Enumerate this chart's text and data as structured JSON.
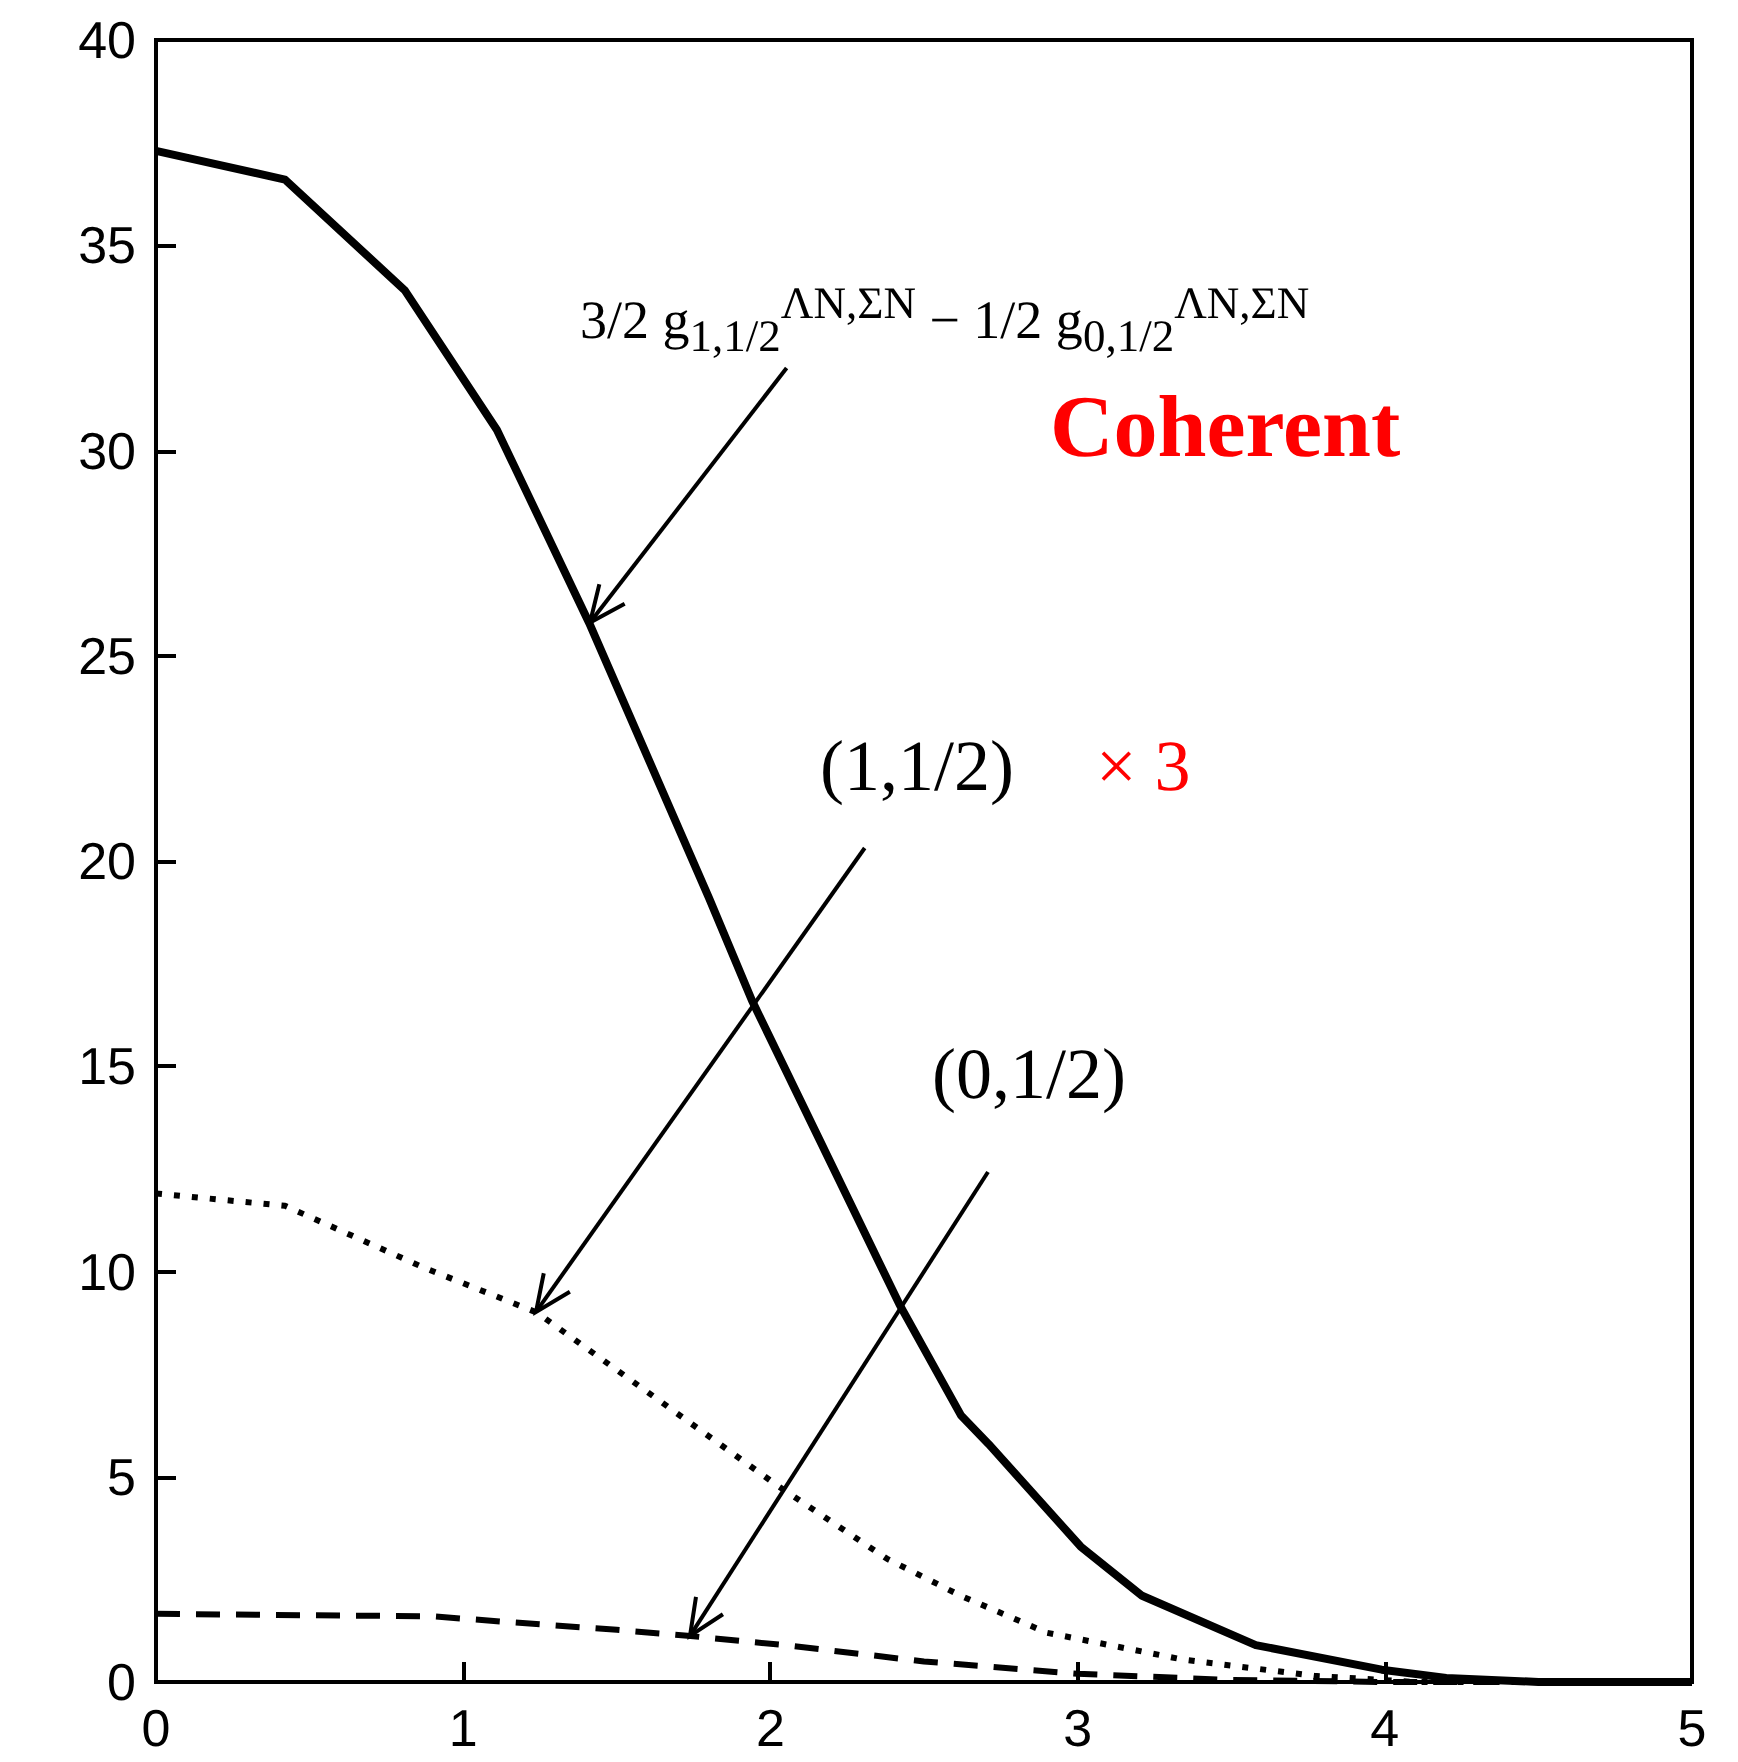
{
  "chart_data": {
    "type": "line",
    "xlim": [
      0,
      5
    ],
    "xticks": [
      0,
      1,
      2,
      3,
      4,
      5
    ],
    "ylim": [
      0,
      40
    ],
    "yticks": [
      0,
      5,
      10,
      15,
      20,
      25,
      30,
      35,
      40
    ],
    "grid": false,
    "marker": "none",
    "series": [
      {
        "color": "#000000",
        "line_style": "solid",
        "x": [
          0,
          0.42,
          0.81,
          1.11,
          1.41,
          1.8,
          1.94,
          2.42,
          2.62,
          2.71,
          3.01,
          3.21,
          3.58,
          3.99,
          4.2,
          4.5,
          5
        ],
        "values": [
          37.3,
          36.6,
          33.9,
          30.5,
          25.8,
          19.1,
          16.6,
          9.2,
          6.5,
          5.8,
          3.3,
          2.1,
          0.9,
          0.3,
          0.1,
          0,
          0
        ]
      },
      {
        "color": "#000000",
        "line_style": "dotted",
        "x": [
          0,
          0.42,
          0.87,
          1.24,
          1.63,
          2.02,
          2.38,
          2.62,
          2.9,
          3.34,
          3.77,
          4.1,
          5
        ],
        "values": [
          11.9,
          11.6,
          10.1,
          9.0,
          6.9,
          4.8,
          3.0,
          2.1,
          1.2,
          0.55,
          0.15,
          0,
          0
        ]
      },
      {
        "color": "#000000",
        "line_style": "dashed",
        "x": [
          0,
          0.9,
          1.13,
          1.5,
          1.74,
          2.07,
          2.5,
          3.0,
          3.5,
          4.0,
          5
        ],
        "values": [
          1.66,
          1.6,
          1.47,
          1.27,
          1.12,
          0.88,
          0.5,
          0.2,
          0.05,
          0,
          0
        ]
      }
    ],
    "annotations": [
      {
        "text": "3/2 g$_{1,1/2}$$^{ΛN,ΣN}$ − 1/2 g$_{0,1/2}$$^{ΛN,ΣN}$",
        "x": 1.41,
        "y": 25.8
      },
      {
        "text": "(1,1/2)",
        "x": 1.24,
        "y": 9.0
      },
      {
        "text": "(0,1/2)",
        "x": 1.74,
        "y": 1.12
      },
      "Coherent",
      "× 3"
    ]
  }
}
